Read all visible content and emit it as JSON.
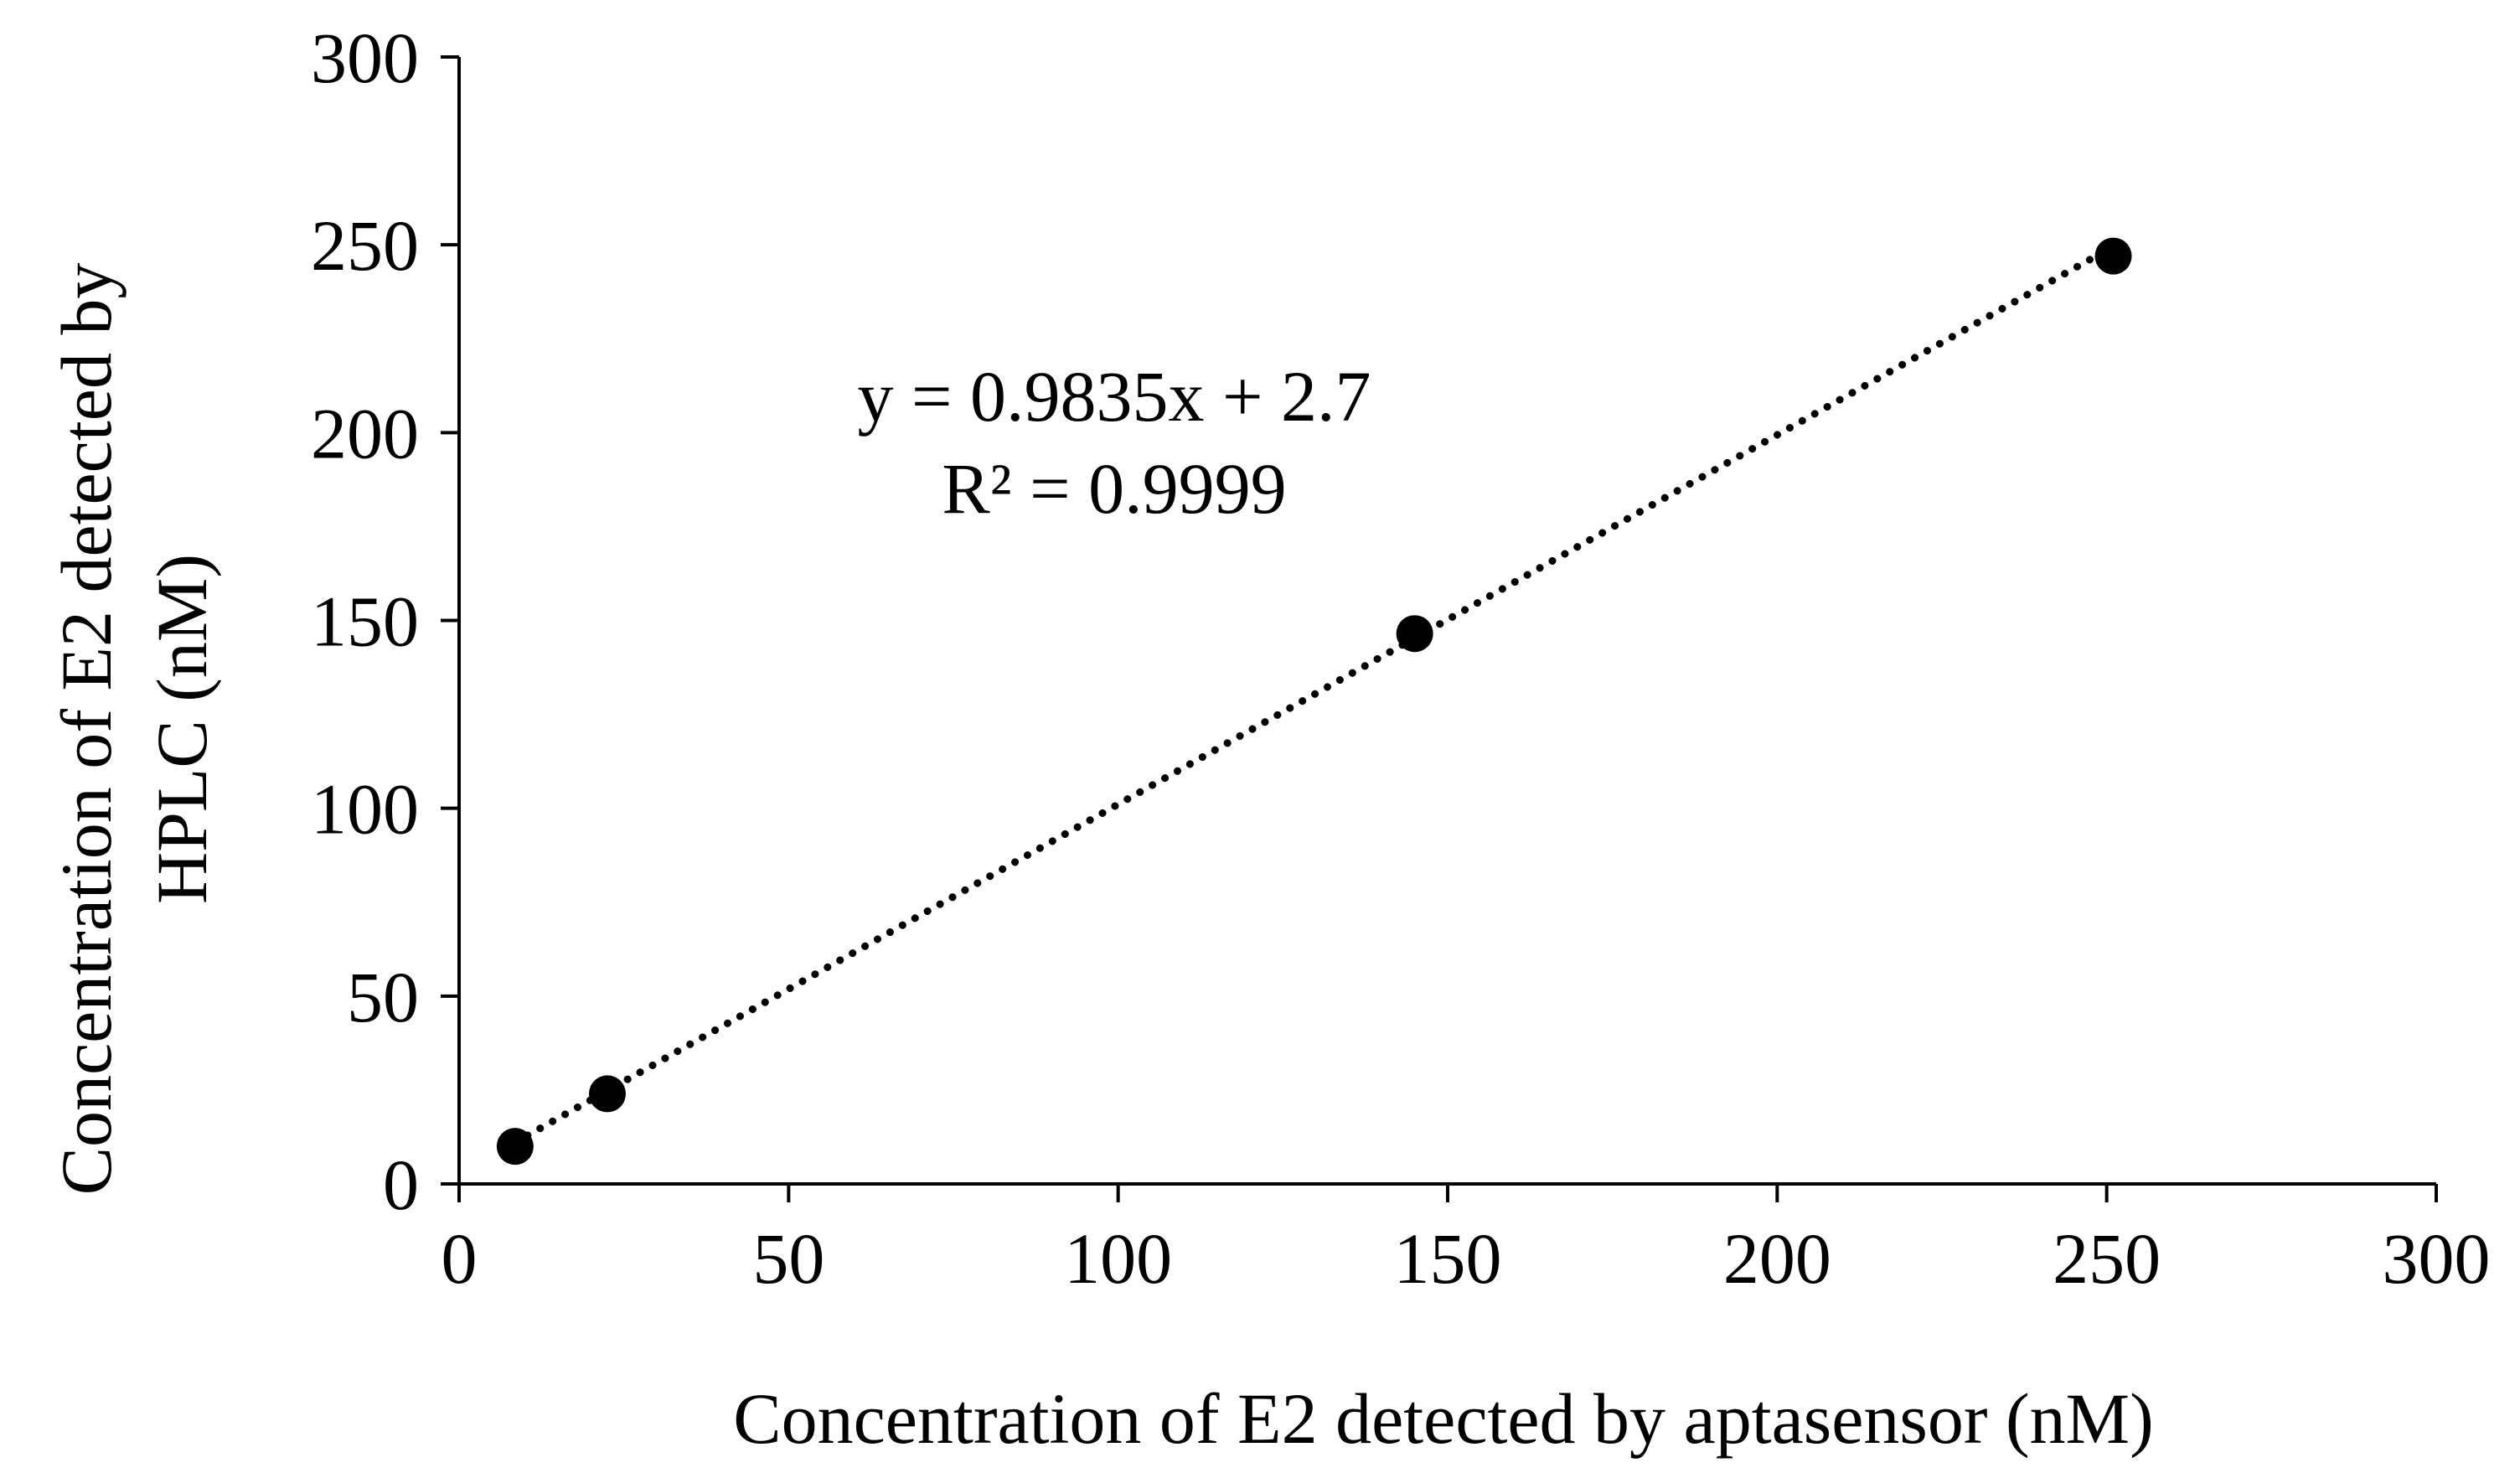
{
  "chart_data": {
    "type": "scatter",
    "xlabel": "Concentration of E2 detected by aptasensor (nM)",
    "ylabel_lines": [
      "Concentration of E2 detected by",
      "HPLC (nM)"
    ],
    "xlim": [
      0,
      300
    ],
    "ylim": [
      0,
      300
    ],
    "xticks": [
      0,
      50,
      100,
      150,
      200,
      250,
      300
    ],
    "yticks": [
      0,
      50,
      100,
      150,
      200,
      250,
      300
    ],
    "grid": false,
    "legend": "none",
    "series": [
      {
        "marker_color": "#000000",
        "points": [
          {
            "x": 8.5,
            "y": 10
          },
          {
            "x": 22.5,
            "y": 24
          },
          {
            "x": 145,
            "y": 146.5
          },
          {
            "x": 251,
            "y": 247
          }
        ]
      }
    ],
    "trendline": {
      "style": "dotted",
      "color": "#000000",
      "slope": 0.9835,
      "intercept": 2.7,
      "x_range": [
        8.5,
        251
      ]
    },
    "annotations": {
      "equation": "y = 0.9835x + 2.7",
      "r_squared": "R² = 0.9999"
    }
  }
}
